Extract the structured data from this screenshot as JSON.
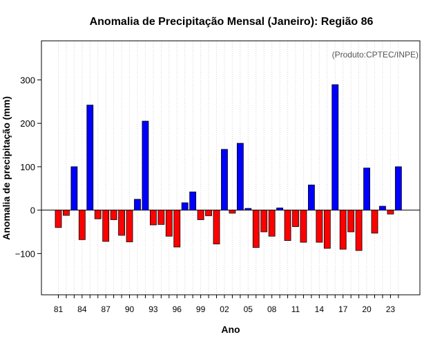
{
  "chart_data": {
    "type": "bar",
    "title": "Anomalia de Precipitação Mensal (Janeiro): Região 86",
    "xlabel": "Ano",
    "ylabel": "Anomalia de precipitação (mm)",
    "credit": "(Produto:CPTEC/INPE)",
    "ylim": [
      -195,
      390
    ],
    "yticks": [
      -100,
      0,
      100,
      200,
      300
    ],
    "ytick_labels": [
      "−100",
      "0",
      "100",
      "200",
      "300"
    ],
    "categories": [
      "81",
      "82",
      "83",
      "84",
      "85",
      "86",
      "87",
      "88",
      "89",
      "90",
      "91",
      "92",
      "93",
      "94",
      "95",
      "96",
      "97",
      "98",
      "99",
      "00",
      "01",
      "02",
      "03",
      "04",
      "05",
      "06",
      "07",
      "08",
      "09",
      "10",
      "11",
      "12",
      "13",
      "14",
      "15",
      "16",
      "17",
      "18",
      "19",
      "20",
      "21",
      "22",
      "23",
      "24"
    ],
    "xtick_labels": [
      "81",
      "84",
      "87",
      "90",
      "93",
      "96",
      "99",
      "02",
      "05",
      "08",
      "11",
      "14",
      "17",
      "20",
      "23"
    ],
    "values": [
      -40,
      -12,
      100,
      -68,
      242,
      -20,
      -72,
      -22,
      -58,
      -73,
      25,
      205,
      -34,
      -33,
      -60,
      -85,
      17,
      42,
      -22,
      -13,
      -78,
      140,
      -7,
      154,
      4,
      -86,
      -50,
      -60,
      5,
      -70,
      -38,
      -74,
      58,
      -74,
      -88,
      289,
      -90,
      -50,
      -93,
      97,
      -53,
      9,
      -9,
      100
    ],
    "colors": {
      "positive": "#0000ff",
      "negative": "#ff0000",
      "outline": "#000000",
      "grid": "#d3d3d3"
    },
    "grid": true
  }
}
